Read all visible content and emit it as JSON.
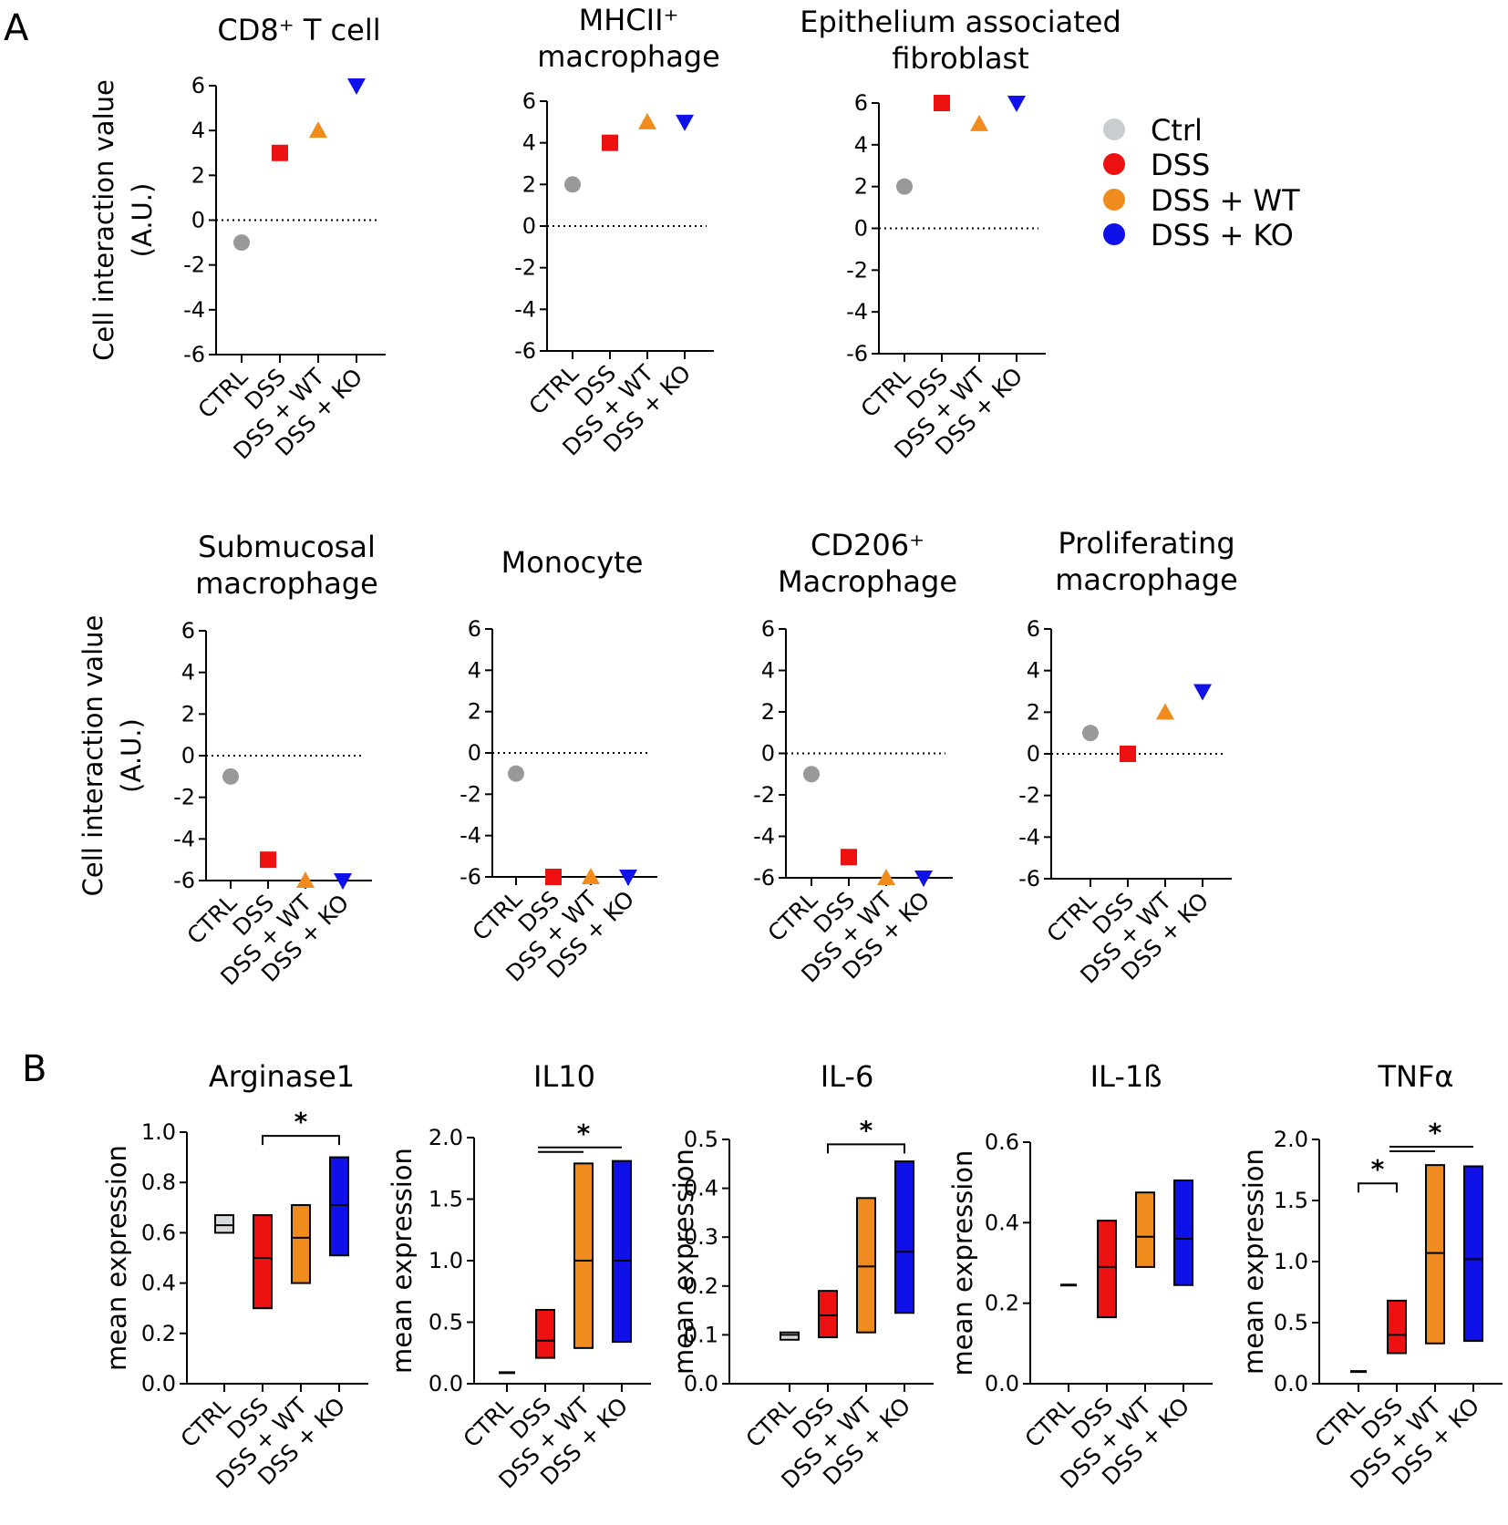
{
  "panel_labels": {
    "A": "A",
    "B": "B"
  },
  "legend": [
    {
      "label": "Ctrl",
      "color": "#c8cdd0"
    },
    {
      "label": "DSS",
      "color": "#ee1111"
    },
    {
      "label": "DSS + WT",
      "color": "#f08c1e"
    },
    {
      "label": "DSS + KO",
      "color": "#1010e8"
    }
  ],
  "colors": {
    "ctrl_marker": "#999999",
    "ctrl_box": "#d7d9db",
    "dss": "#ee1111",
    "wt": "#f08c1e",
    "ko": "#1010e8"
  },
  "chart_data": [
    {
      "id": "a1",
      "type": "scatter",
      "title_lines": [
        "CD8⁺ T cell"
      ],
      "ylabel_lines": [
        "Cell interaction value",
        "(A.U.)"
      ],
      "ylim": [
        -6,
        6
      ],
      "yticks": [
        6,
        4,
        2,
        0,
        -2,
        -4,
        -6
      ],
      "categories": [
        "CTRL",
        "DSS",
        "DSS + WT",
        "DSS + KO"
      ],
      "values": [
        -1,
        3,
        4,
        6
      ],
      "zero_line": true
    },
    {
      "id": "a2",
      "type": "scatter",
      "title_lines": [
        "MHCII⁺",
        "macrophage"
      ],
      "ylabel_lines": [],
      "ylim": [
        -6,
        6
      ],
      "yticks": [
        6,
        4,
        2,
        0,
        -2,
        -4,
        -6
      ],
      "categories": [
        "CTRL",
        "DSS",
        "DSS + WT",
        "DSS + KO"
      ],
      "values": [
        2,
        4,
        5,
        5
      ],
      "zero_line": true
    },
    {
      "id": "a3",
      "type": "scatter",
      "title_lines": [
        "Epithelium associated",
        "fibroblast"
      ],
      "ylabel_lines": [],
      "ylim": [
        -6,
        6
      ],
      "yticks": [
        6,
        4,
        2,
        0,
        -2,
        -4,
        -6
      ],
      "categories": [
        "CTRL",
        "DSS",
        "DSS + WT",
        "DSS + KO"
      ],
      "values": [
        2,
        6,
        5,
        6
      ],
      "zero_line": true
    },
    {
      "id": "a4",
      "type": "scatter",
      "title_lines": [
        "Submucosal",
        "macrophage"
      ],
      "ylabel_lines": [
        "Cell interaction value",
        "(A.U.)"
      ],
      "ylim": [
        -6,
        6
      ],
      "yticks": [
        6,
        4,
        2,
        0,
        -2,
        -4,
        -6
      ],
      "categories": [
        "CTRL",
        "DSS",
        "DSS + WT",
        "DSS + KO"
      ],
      "values": [
        -1,
        -5,
        -6,
        -6
      ],
      "zero_line": true
    },
    {
      "id": "a5",
      "type": "scatter",
      "title_lines": [
        "Monocyte"
      ],
      "ylabel_lines": [],
      "ylim": [
        -6,
        6
      ],
      "yticks": [
        6,
        4,
        2,
        0,
        -2,
        -4,
        -6
      ],
      "categories": [
        "CTRL",
        "DSS",
        "DSS + WT",
        "DSS + KO"
      ],
      "values": [
        -1,
        -6,
        -6,
        -6
      ],
      "zero_line": true
    },
    {
      "id": "a6",
      "type": "scatter",
      "title_lines": [
        "CD206⁺",
        "Macrophage"
      ],
      "ylabel_lines": [],
      "ylim": [
        -6,
        6
      ],
      "yticks": [
        6,
        4,
        2,
        0,
        -2,
        -4,
        -6
      ],
      "categories": [
        "CTRL",
        "DSS",
        "DSS + WT",
        "DSS + KO"
      ],
      "values": [
        -1,
        -5,
        -6,
        -6
      ],
      "zero_line": true
    },
    {
      "id": "a7",
      "type": "scatter",
      "title_lines": [
        "Proliferating",
        "macrophage"
      ],
      "ylabel_lines": [],
      "ylim": [
        -6,
        6
      ],
      "yticks": [
        6,
        4,
        2,
        0,
        -2,
        -4,
        -6
      ],
      "categories": [
        "CTRL",
        "DSS",
        "DSS + WT",
        "DSS + KO"
      ],
      "values": [
        1,
        0,
        2,
        3
      ],
      "zero_line": true
    },
    {
      "id": "b1",
      "type": "box",
      "title_lines": [
        "Arginase1"
      ],
      "ylabel_lines": [
        "mean expression"
      ],
      "ylim": [
        0,
        1.0
      ],
      "yticks": [
        "1.0",
        "0.8",
        "0.6",
        "0.4",
        "0.2",
        "0.0"
      ],
      "categories": [
        "CTRL",
        "DSS",
        "DSS + WT",
        "DSS + KO"
      ],
      "boxes": [
        [
          0.6,
          0.63,
          0.67
        ],
        [
          0.3,
          0.5,
          0.67
        ],
        [
          0.4,
          0.58,
          0.71
        ],
        [
          0.51,
          0.71,
          0.9
        ]
      ],
      "significance": [
        {
          "from": 1,
          "to": 3,
          "label": "*",
          "style": "bracket",
          "y": 0.985
        }
      ]
    },
    {
      "id": "b2",
      "type": "box",
      "title_lines": [
        "IL10"
      ],
      "ylabel_lines": [
        "mean expression"
      ],
      "ylim": [
        0,
        2.0
      ],
      "yticks": [
        "2.0",
        "1.5",
        "1.0",
        "0.5",
        "0.0"
      ],
      "categories": [
        "CTRL",
        "DSS",
        "DSS + WT",
        "DSS + KO"
      ],
      "boxes": [
        [
          0.09,
          0.09,
          0.09
        ],
        [
          0.21,
          0.35,
          0.6
        ],
        [
          0.29,
          1.0,
          1.79
        ],
        [
          0.34,
          1.0,
          1.81
        ]
      ],
      "significance": [
        {
          "from": 1,
          "to": 3,
          "label": "*",
          "style": "double",
          "y": 1.92
        }
      ]
    },
    {
      "id": "b3",
      "type": "box",
      "title_lines": [
        "IL-6"
      ],
      "ylabel_lines": [
        "mean expression"
      ],
      "ylim": [
        0,
        0.5
      ],
      "yticks": [
        "0.5",
        "0.4",
        "0.3",
        "0.2",
        "0.1",
        "0.0"
      ],
      "categories": [
        "CTRL",
        "DSS",
        "DSS + WT",
        "DSS + KO"
      ],
      "boxes": [
        [
          0.09,
          0.1,
          0.105
        ],
        [
          0.095,
          0.14,
          0.19
        ],
        [
          0.105,
          0.24,
          0.38
        ],
        [
          0.145,
          0.27,
          0.455
        ]
      ],
      "significance": [
        {
          "from": 1,
          "to": 3,
          "label": "*",
          "style": "bracket",
          "y": 0.49
        }
      ]
    },
    {
      "id": "b4",
      "type": "box",
      "title_lines": [
        "IL-1ß"
      ],
      "ylabel_lines": [
        "mean expression"
      ],
      "ylim": [
        0,
        0.6
      ],
      "yticks": [
        "0.6",
        "0.4",
        "0.2",
        "0.0"
      ],
      "categories": [
        "CTRL",
        "DSS",
        "DSS + WT",
        "DSS + KO"
      ],
      "boxes": [
        [
          0.245,
          0.245,
          0.245
        ],
        [
          0.165,
          0.29,
          0.405
        ],
        [
          0.29,
          0.365,
          0.475
        ],
        [
          0.245,
          0.36,
          0.505
        ]
      ],
      "significance": []
    },
    {
      "id": "b5",
      "type": "box",
      "title_lines": [
        "TNFα"
      ],
      "ylabel_lines": [
        "mean expression"
      ],
      "ylim": [
        0,
        2.0
      ],
      "yticks": [
        "2.0",
        "1.5",
        "1.0",
        "0.5",
        "0.0"
      ],
      "categories": [
        "CTRL",
        "DSS",
        "DSS + WT",
        "DSS + KO"
      ],
      "boxes": [
        [
          0.1,
          0.1,
          0.1
        ],
        [
          0.25,
          0.4,
          0.68
        ],
        [
          0.33,
          1.07,
          1.79
        ],
        [
          0.35,
          1.02,
          1.78
        ]
      ],
      "significance": [
        {
          "from": 0,
          "to": 1,
          "label": "*",
          "style": "bracket",
          "y": 1.64
        },
        {
          "from": 1,
          "to": 3,
          "label": "*",
          "style": "double",
          "y": 1.94
        }
      ]
    }
  ]
}
